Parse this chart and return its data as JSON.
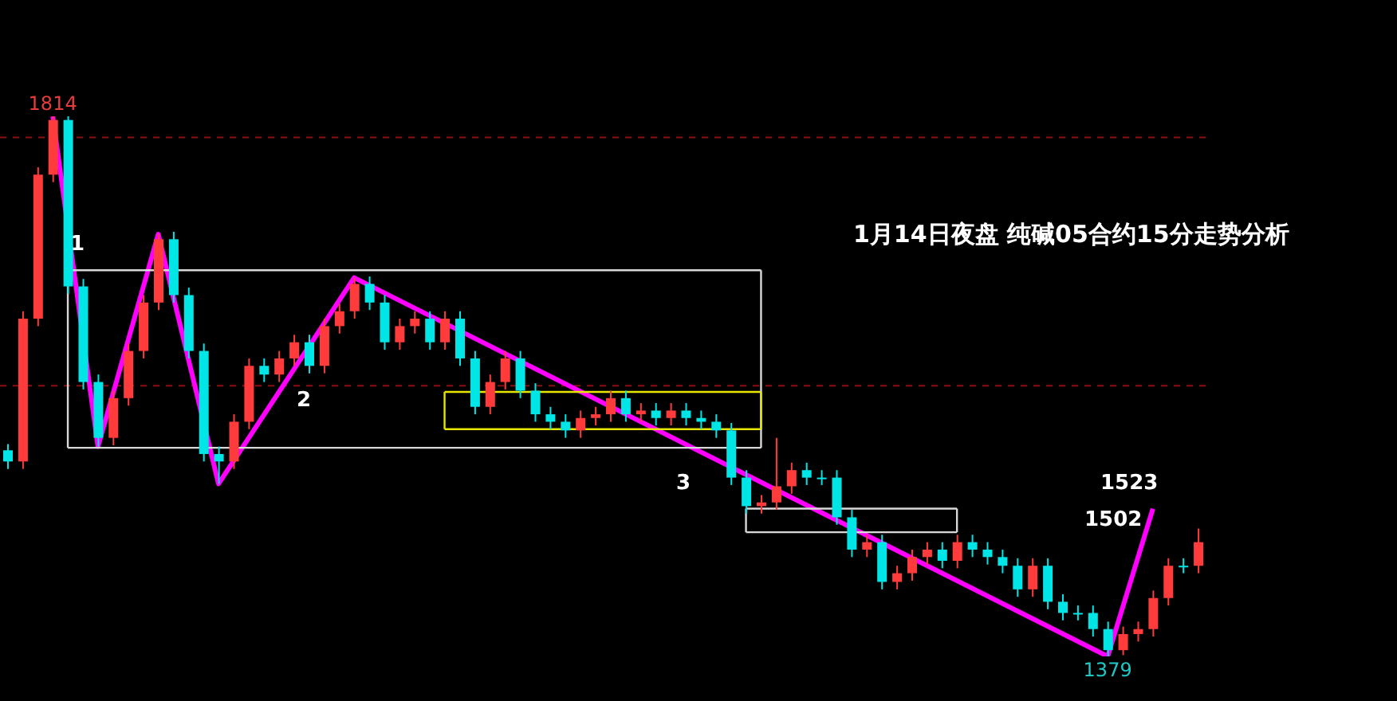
{
  "chart_data": {
    "type": "candlestick",
    "title": "1月14日夜盘 纯碱05合约15分走势分析",
    "categories": [
      null,
      null,
      null,
      null,
      null,
      null,
      null,
      null,
      null,
      null,
      null,
      null,
      null,
      null,
      null,
      null,
      null,
      null,
      null,
      null,
      null,
      null,
      null,
      null,
      null,
      null,
      null,
      null,
      null,
      null,
      null,
      null,
      null,
      null,
      null,
      null,
      null,
      null,
      null,
      null,
      null,
      null,
      null,
      null,
      null,
      null,
      null,
      null,
      null,
      null,
      null,
      null,
      null,
      null,
      null,
      null,
      null,
      null,
      null,
      null,
      null,
      null,
      null,
      null,
      null,
      null,
      null,
      null,
      null,
      null,
      null,
      null,
      null,
      null,
      null,
      null,
      null,
      null,
      null,
      null
    ],
    "ohlc": [
      [
        1545,
        1550,
        1530,
        1536
      ],
      [
        1536,
        1657,
        1530,
        1651
      ],
      [
        1651,
        1773,
        1645,
        1767
      ],
      [
        1767,
        1814,
        1761,
        1811
      ],
      [
        1811,
        1814,
        1671,
        1677
      ],
      [
        1677,
        1683,
        1594,
        1600
      ],
      [
        1600,
        1606,
        1548,
        1555
      ],
      [
        1555,
        1593,
        1549,
        1587
      ],
      [
        1587,
        1631,
        1581,
        1625
      ],
      [
        1625,
        1670,
        1619,
        1664
      ],
      [
        1664,
        1719,
        1658,
        1715
      ],
      [
        1715,
        1721,
        1664,
        1670
      ],
      [
        1670,
        1676,
        1619,
        1625
      ],
      [
        1625,
        1631,
        1536,
        1542
      ],
      [
        1542,
        1548,
        1518,
        1536
      ],
      [
        1536,
        1574,
        1530,
        1568
      ],
      [
        1568,
        1619,
        1562,
        1613
      ],
      [
        1613,
        1619,
        1600,
        1606
      ],
      [
        1606,
        1625,
        1600,
        1619
      ],
      [
        1619,
        1638,
        1613,
        1632
      ],
      [
        1632,
        1638,
        1607,
        1613
      ],
      [
        1613,
        1651,
        1607,
        1645
      ],
      [
        1645,
        1663,
        1639,
        1657
      ],
      [
        1657,
        1684,
        1651,
        1679
      ],
      [
        1679,
        1685,
        1658,
        1664
      ],
      [
        1664,
        1670,
        1626,
        1632
      ],
      [
        1632,
        1651,
        1626,
        1645
      ],
      [
        1645,
        1657,
        1639,
        1651
      ],
      [
        1651,
        1657,
        1626,
        1632
      ],
      [
        1632,
        1657,
        1626,
        1651
      ],
      [
        1651,
        1657,
        1613,
        1619
      ],
      [
        1619,
        1625,
        1574,
        1580
      ],
      [
        1580,
        1606,
        1574,
        1600
      ],
      [
        1600,
        1625,
        1594,
        1619
      ],
      [
        1619,
        1625,
        1587,
        1593
      ],
      [
        1593,
        1599,
        1568,
        1574
      ],
      [
        1574,
        1580,
        1562,
        1568
      ],
      [
        1568,
        1574,
        1555,
        1561
      ],
      [
        1561,
        1577,
        1555,
        1571
      ],
      [
        1571,
        1580,
        1565,
        1574
      ],
      [
        1574,
        1593,
        1568,
        1587
      ],
      [
        1587,
        1593,
        1568,
        1574
      ],
      [
        1574,
        1583,
        1568,
        1577
      ],
      [
        1577,
        1583,
        1565,
        1571
      ],
      [
        1571,
        1583,
        1565,
        1577
      ],
      [
        1577,
        1583,
        1565,
        1571
      ],
      [
        1571,
        1577,
        1562,
        1568
      ],
      [
        1568,
        1574,
        1555,
        1561
      ],
      [
        1561,
        1567,
        1517,
        1523
      ],
      [
        1523,
        1529,
        1494,
        1500
      ],
      [
        1500,
        1509,
        1494,
        1503
      ],
      [
        1503,
        1555,
        1497,
        1516
      ],
      [
        1516,
        1535,
        1510,
        1529
      ],
      [
        1529,
        1535,
        1517,
        1523
      ],
      [
        1523,
        1529,
        1517,
        1523
      ],
      [
        1523,
        1529,
        1485,
        1491
      ],
      [
        1491,
        1497,
        1459,
        1465
      ],
      [
        1465,
        1477,
        1459,
        1471
      ],
      [
        1471,
        1477,
        1433,
        1439
      ],
      [
        1439,
        1452,
        1433,
        1446
      ],
      [
        1446,
        1465,
        1440,
        1459
      ],
      [
        1459,
        1471,
        1453,
        1465
      ],
      [
        1465,
        1471,
        1450,
        1456
      ],
      [
        1456,
        1477,
        1450,
        1471
      ],
      [
        1471,
        1477,
        1459,
        1465
      ],
      [
        1465,
        1471,
        1453,
        1459
      ],
      [
        1459,
        1465,
        1446,
        1452
      ],
      [
        1452,
        1458,
        1427,
        1433
      ],
      [
        1433,
        1458,
        1427,
        1452
      ],
      [
        1452,
        1458,
        1417,
        1423
      ],
      [
        1423,
        1429,
        1408,
        1414
      ],
      [
        1414,
        1420,
        1408,
        1414
      ],
      [
        1414,
        1420,
        1395,
        1401
      ],
      [
        1401,
        1407,
        1379,
        1384
      ],
      [
        1384,
        1403,
        1380,
        1397
      ],
      [
        1397,
        1407,
        1391,
        1401
      ],
      [
        1401,
        1432,
        1395,
        1426
      ],
      [
        1426,
        1458,
        1420,
        1452
      ],
      [
        1452,
        1458,
        1446,
        1452
      ],
      [
        1452,
        1482,
        1446,
        1471
      ]
    ],
    "colors": [
      "#00e5e5",
      "#ff3b3b",
      "#ff3b3b",
      "#ff3b3b",
      "#00e5e5",
      "#00e5e5",
      "#00e5e5",
      "#ff3b3b",
      "#ff3b3b",
      "#ff3b3b",
      "#ff3b3b",
      "#00e5e5",
      "#00e5e5",
      "#00e5e5",
      "#00e5e5",
      "#ff3b3b",
      "#ff3b3b",
      "#00e5e5",
      "#ff3b3b",
      "#ff3b3b",
      "#00e5e5",
      "#ff3b3b",
      "#ff3b3b",
      "#ff3b3b",
      "#00e5e5",
      "#00e5e5",
      "#ff3b3b",
      "#ff3b3b",
      "#00e5e5",
      "#ff3b3b",
      "#00e5e5",
      "#00e5e5",
      "#ff3b3b",
      "#ff3b3b",
      "#00e5e5",
      "#00e5e5",
      "#00e5e5",
      "#00e5e5",
      "#ff3b3b",
      "#ff3b3b",
      "#ff3b3b",
      "#00e5e5",
      "#ff3b3b",
      "#00e5e5",
      "#ff3b3b",
      "#00e5e5",
      "#00e5e5",
      "#00e5e5",
      "#00e5e5",
      "#00e5e5",
      "#ff3b3b",
      "#ff3b3b",
      "#ff3b3b",
      "#00e5e5",
      "#00e5e5",
      "#00e5e5",
      "#00e5e5",
      "#ff3b3b",
      "#00e5e5",
      "#ff3b3b",
      "#ff3b3b",
      "#ff3b3b",
      "#00e5e5",
      "#ff3b3b",
      "#00e5e5",
      "#00e5e5",
      "#00e5e5",
      "#00e5e5",
      "#ff3b3b",
      "#00e5e5",
      "#00e5e5",
      "#00e5e5",
      "#00e5e5",
      "#00e5e5",
      "#ff3b3b",
      "#ff3b3b",
      "#ff3b3b",
      "#ff3b3b",
      "#00e5e5",
      "#ff3b3b"
    ],
    "series": [
      {
        "type": "line",
        "color": "#ff00ff",
        "values": [
          null,
          null,
          null,
          1814,
          null,
          null,
          1548,
          null,
          null,
          null,
          1719,
          null,
          null,
          null,
          1518,
          null,
          null,
          null,
          null,
          null,
          null,
          null,
          null,
          1684,
          null,
          null,
          null,
          null,
          null,
          null,
          null,
          null,
          null,
          null,
          null,
          null,
          null,
          null,
          null,
          null,
          null,
          null,
          null,
          null,
          null,
          null,
          null,
          null,
          null,
          null,
          null,
          null,
          null,
          null,
          null,
          null,
          null,
          null,
          null,
          null,
          null,
          null,
          null,
          null,
          null,
          null,
          null,
          null,
          null,
          null,
          null,
          null,
          null,
          1379,
          null,
          null,
          1498,
          null,
          null,
          null
        ]
      },
      {
        "type": "line",
        "color": "#d8d8d8",
        "values": [
          null,
          null,
          null,
          null,
          1690,
          1690,
          1690,
          1690,
          1690,
          1690,
          1690,
          1690,
          1690,
          1690,
          1690,
          1690,
          1690,
          1690,
          1690,
          1690,
          1690,
          1690,
          1690,
          1690,
          1690,
          1690,
          1690,
          1690,
          1690,
          1690,
          1690,
          1690,
          1690,
          1690,
          1690,
          1690,
          1690,
          1690,
          1690,
          1690,
          1690,
          1690,
          1690,
          1690,
          1690,
          1690,
          1690,
          1690,
          1690,
          1690,
          1690,
          null,
          null,
          null,
          null,
          null,
          null,
          null,
          null,
          null,
          null,
          null,
          null,
          null,
          null,
          null,
          null,
          null,
          null,
          null,
          null,
          null,
          null,
          null,
          null,
          null,
          null,
          null,
          null,
          null
        ]
      },
      {
        "type": "line",
        "color": "#d8d8d8",
        "values": [
          null,
          null,
          null,
          null,
          1547,
          1547,
          1547,
          1547,
          1547,
          1547,
          1547,
          1547,
          1547,
          1547,
          1547,
          1547,
          1547,
          1547,
          1547,
          1547,
          1547,
          1547,
          1547,
          1547,
          1547,
          1547,
          1547,
          1547,
          1547,
          1547,
          1547,
          1547,
          1547,
          1547,
          1547,
          1547,
          1547,
          1547,
          1547,
          1547,
          1547,
          1547,
          1547,
          1547,
          1547,
          1547,
          1547,
          1547,
          1547,
          1547,
          1547,
          null,
          null,
          null,
          null,
          null,
          null,
          null,
          null,
          null,
          null,
          null,
          null,
          null,
          null,
          null,
          null,
          null,
          null,
          null,
          null,
          null,
          null,
          null,
          null,
          null,
          null,
          null,
          null,
          null
        ]
      },
      {
        "type": "line",
        "color": "#e6e600",
        "values": [
          null,
          null,
          null,
          null,
          null,
          null,
          null,
          null,
          null,
          null,
          null,
          null,
          null,
          null,
          null,
          null,
          null,
          null,
          null,
          null,
          null,
          null,
          null,
          null,
          null,
          null,
          null,
          null,
          null,
          1592,
          1592,
          1592,
          1592,
          1592,
          1592,
          1592,
          1592,
          1592,
          1592,
          1592,
          1592,
          1592,
          1592,
          1592,
          1592,
          1592,
          1592,
          1592,
          1592,
          1592,
          1592,
          null,
          null,
          null,
          null,
          null,
          null,
          null,
          null,
          null,
          null,
          null,
          null,
          null,
          null,
          null,
          null,
          null,
          null,
          null,
          null,
          null,
          null,
          null,
          null,
          null,
          null,
          null,
          null,
          null
        ]
      },
      {
        "type": "line",
        "color": "#e6e600",
        "values": [
          null,
          null,
          null,
          null,
          null,
          null,
          null,
          null,
          null,
          null,
          null,
          null,
          null,
          null,
          null,
          null,
          null,
          null,
          null,
          null,
          null,
          null,
          null,
          null,
          null,
          null,
          null,
          null,
          null,
          1562,
          1562,
          1562,
          1562,
          1562,
          1562,
          1562,
          1562,
          1562,
          1562,
          1562,
          1562,
          1562,
          1562,
          1562,
          1562,
          1562,
          1562,
          1562,
          1562,
          1562,
          1562,
          null,
          null,
          null,
          null,
          null,
          null,
          null,
          null,
          null,
          null,
          null,
          null,
          null,
          null,
          null,
          null,
          null,
          null,
          null,
          null,
          null,
          null,
          null,
          null,
          null,
          null,
          null,
          null,
          null
        ]
      },
      {
        "type": "line",
        "color": "#d8d8d8",
        "values": [
          null,
          null,
          null,
          null,
          null,
          null,
          null,
          null,
          null,
          null,
          null,
          null,
          null,
          null,
          null,
          null,
          null,
          null,
          null,
          null,
          null,
          null,
          null,
          null,
          null,
          null,
          null,
          null,
          null,
          null,
          null,
          null,
          null,
          null,
          null,
          null,
          null,
          null,
          null,
          null,
          null,
          null,
          null,
          null,
          null,
          null,
          null,
          null,
          null,
          1498,
          1498,
          1498,
          1498,
          1498,
          1498,
          1498,
          1498,
          1498,
          1498,
          1498,
          1498,
          1498,
          1498,
          1498,
          null,
          null,
          null,
          null,
          null,
          null,
          null,
          null,
          null,
          null,
          null,
          null,
          null,
          null,
          null,
          null
        ]
      },
      {
        "type": "line",
        "color": "#d8d8d8",
        "values": [
          null,
          null,
          null,
          null,
          null,
          null,
          null,
          null,
          null,
          null,
          null,
          null,
          null,
          null,
          null,
          null,
          null,
          null,
          null,
          null,
          null,
          null,
          null,
          null,
          null,
          null,
          null,
          null,
          null,
          null,
          null,
          null,
          null,
          null,
          null,
          null,
          null,
          null,
          null,
          null,
          null,
          null,
          null,
          null,
          null,
          null,
          null,
          null,
          null,
          1479,
          1479,
          1479,
          1479,
          1479,
          1479,
          1479,
          1479,
          1479,
          1479,
          1479,
          1479,
          1479,
          1479,
          1479,
          null,
          null,
          null,
          null,
          null,
          null,
          null,
          null,
          null,
          null,
          null,
          null,
          null,
          null,
          null,
          null
        ]
      }
    ],
    "ref_lines": [
      {
        "axis": "y",
        "value": 1797,
        "color": "#8b1010",
        "line_style": "dashed"
      },
      {
        "axis": "y",
        "value": 1597,
        "color": "#8b1010",
        "line_style": "dashed"
      }
    ],
    "annotations": [
      {
        "text": "1814",
        "y": 1814
      },
      "1",
      "2",
      "3",
      {
        "text": "1379",
        "y": 1379
      },
      "1523",
      "1502"
    ]
  }
}
